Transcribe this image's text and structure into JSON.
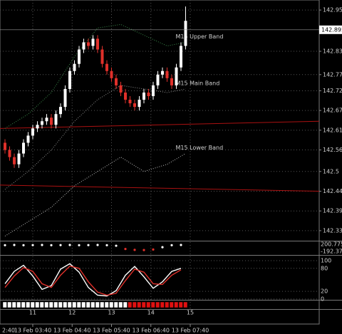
{
  "chart_data": [
    {
      "type": "candlestick",
      "open": [
        142.58,
        142.56,
        142.54,
        142.52,
        142.55,
        142.58,
        142.6,
        142.62,
        142.63,
        142.64,
        142.65,
        142.63,
        142.66,
        142.68,
        142.73,
        142.78,
        142.8,
        142.84,
        142.86,
        142.85,
        142.87,
        142.84,
        142.8,
        142.78,
        142.76,
        142.74,
        142.72,
        142.7,
        142.69,
        142.68,
        142.7,
        142.72,
        142.71,
        142.74,
        142.77,
        142.78,
        142.76,
        142.74,
        142.79,
        142.85
      ],
      "high": [
        142.59,
        142.57,
        142.55,
        142.56,
        142.59,
        142.61,
        142.63,
        142.64,
        142.65,
        142.66,
        142.66,
        142.67,
        142.69,
        142.74,
        142.79,
        142.81,
        142.85,
        142.87,
        142.87,
        142.88,
        142.88,
        142.85,
        142.81,
        142.79,
        142.77,
        142.75,
        142.73,
        142.71,
        142.7,
        142.71,
        142.73,
        142.73,
        142.75,
        142.78,
        142.79,
        142.79,
        142.77,
        142.8,
        142.86,
        142.96
      ],
      "low": [
        142.55,
        142.53,
        142.51,
        142.51,
        142.54,
        142.57,
        142.59,
        142.61,
        142.62,
        142.63,
        142.62,
        142.62,
        142.65,
        142.67,
        142.72,
        142.77,
        142.79,
        142.83,
        142.84,
        142.84,
        142.83,
        142.79,
        142.77,
        142.75,
        142.73,
        142.71,
        142.69,
        142.68,
        142.67,
        142.67,
        142.69,
        142.7,
        142.7,
        142.73,
        142.76,
        142.75,
        142.73,
        142.73,
        142.78,
        142.84
      ],
      "close": [
        142.56,
        142.54,
        142.52,
        142.55,
        142.58,
        142.6,
        142.62,
        142.63,
        142.64,
        142.65,
        142.63,
        142.66,
        142.68,
        142.73,
        142.78,
        142.8,
        142.84,
        142.86,
        142.85,
        142.87,
        142.84,
        142.8,
        142.78,
        142.76,
        142.74,
        142.72,
        142.7,
        142.69,
        142.68,
        142.7,
        142.72,
        142.71,
        142.74,
        142.77,
        142.78,
        142.76,
        142.74,
        142.79,
        142.85,
        142.92
      ],
      "up_color": "#ffffff",
      "down_color": "#e0302a",
      "ylim": [
        142.307,
        142.978
      ],
      "yticks": [
        142.95,
        142.835,
        142.77,
        142.725,
        142.67,
        142.615,
        142.56,
        142.5,
        142.445,
        142.39,
        142.335
      ],
      "xticks": [
        {
          "value": -3,
          "label": "2:40"
        },
        {
          "value": 6,
          "label": "13 Feb 03:40"
        },
        {
          "value": 14.5,
          "label": "13 Feb 04:40"
        },
        {
          "value": 23,
          "label": "13 Feb 05:40"
        },
        {
          "value": 31.5,
          "label": "13 Feb 06:40"
        },
        {
          "value": 40,
          "label": "13 Feb 07:40"
        }
      ],
      "last_price": {
        "value": 142.895,
        "label": "142.895"
      },
      "grid": true,
      "series": [
        {
          "name": "M15 Upper Band",
          "color": "#33cccc",
          "line_color": "#3a8a4a",
          "x": [
            0,
            5,
            10,
            15,
            20,
            25,
            30,
            35,
            39
          ],
          "values": [
            142.62,
            142.66,
            142.72,
            142.82,
            142.9,
            142.91,
            142.88,
            142.85,
            142.86
          ]
        },
        {
          "name": "M15 Main Band",
          "color": "#ffffff",
          "line_color": "#8a8a8a",
          "x": [
            0,
            5,
            10,
            15,
            20,
            25,
            30,
            35,
            39
          ],
          "values": [
            142.45,
            142.5,
            142.56,
            142.64,
            142.7,
            142.74,
            142.73,
            142.72,
            142.73
          ]
        },
        {
          "name": "M15 Lower Band",
          "color": "#e6d84a",
          "line_color": "#bbbbbb",
          "x": [
            0,
            5,
            10,
            15,
            20,
            25,
            30,
            35,
            39
          ],
          "values": [
            142.32,
            142.36,
            142.4,
            142.46,
            142.5,
            142.54,
            142.5,
            142.52,
            142.55
          ]
        }
      ],
      "levels": [
        {
          "color": "#aa1111",
          "values": [
            142.62,
            142.64
          ]
        },
        {
          "color": "#aa1111",
          "values": [
            142.462,
            142.445
          ]
        }
      ]
    },
    {
      "type": "dots",
      "ylim": [
        -349.6,
        358
      ],
      "yticks": [
        200.775,
        -192.3705
      ],
      "color": "#ffffff",
      "neg_color": "#e0302a",
      "x": [
        0,
        2,
        4,
        6,
        8,
        10,
        12,
        14,
        16,
        18,
        20,
        22,
        24,
        26,
        28,
        30,
        32,
        34,
        36,
        38
      ],
      "values": [
        150,
        160,
        150,
        155,
        160,
        150,
        155,
        160,
        150,
        155,
        160,
        150,
        120,
        -60,
        -110,
        -120,
        -90,
        40,
        150,
        160
      ]
    },
    {
      "type": "line",
      "ylim": [
        -2,
        113
      ],
      "yticks": [
        100,
        80,
        20,
        0
      ],
      "grid": true,
      "series": [
        {
          "color": "#ffffff",
          "x": [
            0,
            2,
            4,
            6,
            8,
            10,
            12,
            14,
            16,
            18,
            20,
            22,
            24,
            26,
            28,
            30,
            32,
            34,
            36,
            38
          ],
          "values": [
            40,
            72,
            88,
            60,
            25,
            35,
            78,
            92,
            70,
            30,
            10,
            8,
            22,
            62,
            85,
            58,
            28,
            45,
            72,
            80
          ]
        },
        {
          "color": "#e0302a",
          "x": [
            0,
            2,
            4,
            6,
            8,
            10,
            12,
            14,
            16,
            18,
            20,
            22,
            24,
            26,
            28,
            30,
            32,
            34,
            36,
            38
          ],
          "values": [
            30,
            60,
            82,
            72,
            40,
            30,
            62,
            86,
            80,
            45,
            18,
            10,
            15,
            48,
            78,
            70,
            40,
            38,
            62,
            76
          ]
        }
      ]
    },
    {
      "type": "signal",
      "up_color": "#ffffff",
      "down_color": "#e01010",
      "values": [
        1,
        1,
        1,
        1,
        1,
        1,
        1,
        1,
        1,
        1,
        1,
        1,
        1,
        1,
        1,
        1,
        1,
        1,
        1,
        1,
        1,
        1,
        1,
        1,
        1,
        1,
        1,
        -1,
        -1,
        -1,
        -1,
        -1,
        -1,
        -1,
        -1,
        -1,
        -1,
        -1,
        -1,
        -1
      ],
      "xticks": [
        {
          "value": 6,
          "label": "11"
        },
        {
          "value": 14.5,
          "label": "12"
        },
        {
          "value": 23,
          "label": "13"
        },
        {
          "value": 31.5,
          "label": "14"
        },
        {
          "value": 40,
          "label": "15"
        }
      ]
    }
  ]
}
